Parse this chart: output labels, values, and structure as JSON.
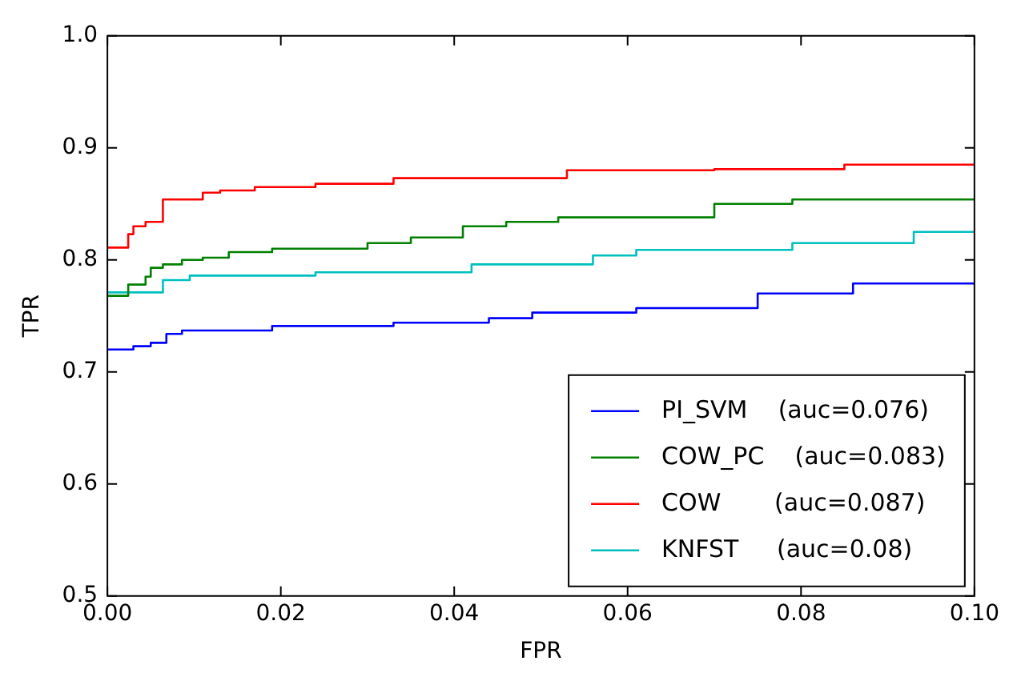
{
  "chart_data": {
    "type": "step",
    "xlabel": "FPR",
    "ylabel": "TPR",
    "xlim": [
      0,
      0.1
    ],
    "ylim": [
      0.5,
      1.0
    ],
    "xticks": [
      {
        "value": 0,
        "label": "0.00"
      },
      {
        "value": 0.02,
        "label": "0.02"
      },
      {
        "value": 0.04,
        "label": "0.04"
      },
      {
        "value": 0.06,
        "label": "0.06"
      },
      {
        "value": 0.08,
        "label": "0.08"
      },
      {
        "value": 0.1,
        "label": "0.10"
      }
    ],
    "yticks": [
      0.5,
      0.6,
      0.7,
      0.8,
      0.9,
      {
        "value": 1.0,
        "label": "1.0"
      }
    ],
    "grid": false,
    "legend": "bottom right",
    "marker": "none",
    "line_style": "solid",
    "series": [
      {
        "name": "PI_SVM    (auc=0.076)",
        "color": "#0000ff",
        "x": [
          0,
          0.003,
          0.005,
          0.0068,
          0.0086,
          0.019,
          0.033,
          0.044,
          0.049,
          0.061,
          0.075,
          0.086,
          0.1
        ],
        "values": [
          0.72,
          0.723,
          0.726,
          0.734,
          0.737,
          0.741,
          0.744,
          0.748,
          0.753,
          0.757,
          0.77,
          0.779,
          0.779
        ]
      },
      {
        "name": "COW_PC    (auc=0.083)",
        "color": "#008000",
        "x": [
          0,
          0.0024,
          0.0044,
          0.005,
          0.0064,
          0.0086,
          0.011,
          0.014,
          0.019,
          0.03,
          0.035,
          0.041,
          0.046,
          0.052,
          0.07,
          0.079,
          0.1
        ],
        "values": [
          0.768,
          0.778,
          0.785,
          0.793,
          0.796,
          0.8,
          0.802,
          0.807,
          0.81,
          0.815,
          0.82,
          0.83,
          0.834,
          0.838,
          0.85,
          0.854,
          0.854
        ]
      },
      {
        "name": "COW       (auc=0.087)",
        "color": "#ff0000",
        "x": [
          0,
          0.0024,
          0.003,
          0.0044,
          0.0064,
          0.011,
          0.013,
          0.017,
          0.024,
          0.033,
          0.053,
          0.07,
          0.085,
          0.1
        ],
        "values": [
          0.811,
          0.823,
          0.83,
          0.834,
          0.854,
          0.86,
          0.862,
          0.865,
          0.868,
          0.873,
          0.88,
          0.881,
          0.885,
          0.885
        ]
      },
      {
        "name": "KNFST     (auc=0.08)",
        "color": "#00bfbf",
        "x": [
          0,
          0.0064,
          0.0095,
          0.024,
          0.042,
          0.056,
          0.061,
          0.079,
          0.093,
          0.1
        ],
        "values": [
          0.771,
          0.782,
          0.786,
          0.789,
          0.796,
          0.804,
          0.809,
          0.815,
          0.825,
          0.825
        ]
      }
    ]
  }
}
